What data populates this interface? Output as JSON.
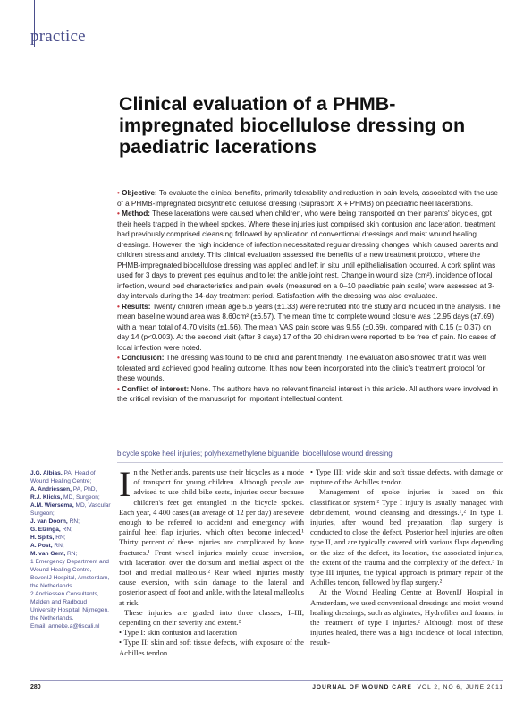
{
  "header": {
    "section": "practice"
  },
  "title": "Clinical evaluation of a PHMB-impregnated biocellulose dressing on paediatric lacerations",
  "abstract": {
    "objective": {
      "label": "Objective:",
      "text": " To evaluate the clinical benefits, primarily tolerability and reduction in pain levels, associated with the use of a PHMB-impregnated biosynthetic cellulose dressing (Suprasorb X + PHMB) on paediatric heel lacerations."
    },
    "method": {
      "label": "Method:",
      "text": " These lacerations were caused when children, who were being transported on their parents' bicycles, got their heels trapped in the wheel spokes. Where these injuries just comprised skin contusion and laceration, treatment had previously comprised cleansing followed by application of conventional dressings and moist wound healing dressings. However, the high incidence of infection necessitated regular dressing changes, which caused parents and children stress and anxiety. This clinical evaluation assessed the benefits of a new treatment protocol, where the PHMB-impregnated biocellulose dressing was applied and left in situ until epithelialisation occurred. A cork splint was used for 3 days to prevent pes equinus and to let the ankle joint rest. Change in wound size (cm²), incidence of local infection, wound bed characteristics and pain levels (measured on a 0–10 paediatric pain scale) were assessed at 3-day intervals during the 14-day treatment period. Satisfaction with the dressing was also evaluated."
    },
    "results": {
      "label": "Results:",
      "text": " Twenty children (mean age 5.6 years (±1.33) were recruited into the study and included in the analysis. The mean baseline wound area was 8.60cm² (±6.57). The mean time to complete wound closure was 12.95 days (±7.69) with a mean total of 4.70 visits (±1.56). The mean VAS pain score was 9.55 (±0.69), compared with 0.15 (± 0.37) on day 14 (p<0.003). At the second visit (after 3 days) 17 of the 20 children were reported to be free of pain. No cases of local infection were noted."
    },
    "conclusion": {
      "label": "Conclusion:",
      "text": " The dressing was found to be child and parent friendly. The evaluation also showed that it was well tolerated and achieved good healing outcome. It has now been incorporated into the clinic's treatment protocol for these wounds."
    },
    "conflict": {
      "label": "Conflict of interest:",
      "text": " None. The authors have no relevant financial interest in this article. All authors were involved in the critical revision of the manuscript for important intellectual content."
    }
  },
  "keywords": "bicycle spoke heel injuries; polyhexamethylene biguanide; biocellulose wound dressing",
  "authors": {
    "people": [
      {
        "name": "J.G. Albias,",
        "role": " PA, Head of Wound Healing Centre;"
      },
      {
        "name": "A. Andriessen,",
        "role": " PA, PhD,"
      },
      {
        "name": "R.J. Klicks,",
        "role": " MD, Surgeon;"
      },
      {
        "name": "A.M. Wiersema,",
        "role": " MD, Vascular Surgeon;"
      },
      {
        "name": "J. van Doorn,",
        "role": " RN;"
      },
      {
        "name": "G. Elzinga,",
        "role": " RN;"
      },
      {
        "name": "H. Spits,",
        "role": " RN;"
      },
      {
        "name": "A. Post,",
        "role": " RN;"
      },
      {
        "name": "M. van Gent,",
        "role": " RN;"
      }
    ],
    "affiliation_1": "1 Emergency Department and Wound Healing Centre, BovenIJ Hospital, Amsterdam, the Netherlands",
    "affiliation_2": "2 Andriessen Consultants, Malden and Radboud University Hospital, Nijmegen, the Netherlands.",
    "email": "Email: anneke.a@tiscali.nl"
  },
  "body": {
    "dropcap": "I",
    "col1_p1": "n the Netherlands, parents use their bicycles as a mode of transport for young children. Although people are advised to use child bike seats, injuries occur because children's feet get entangled in the bicycle spokes. Each year, 4 400 cases (an average of 12 per day) are severe enough to be referred to accident and emergency with painful heel flap injuries, which often become infected.¹ Thirty percent of these injuries are complicated by bone fractures.¹ Front wheel injuries mainly cause inversion, with laceration over the dorsum and medial aspect of the foot and medial malleolus.² Rear wheel injuries mostly cause eversion, with skin damage to the lateral and posterior aspect of foot and ankle, with the lateral malleolus at risk.",
    "col1_p2": "These injuries are graded into three classes, I–III, depending on their severity and extent.²",
    "col1_b1": "• Type I: skin contusion and laceration",
    "col1_b2": "• Type II: skin and soft tissue defects, with exposure of the Achilles tendon",
    "col2_b3": "• Type III: wide skin and soft tissue defects, with damage or rupture of the Achilles tendon.",
    "col2_p1": "Management of spoke injuries is based on this classification system.² Type I injury is usually managed with debridement, wound cleansing and dressings.¹,² In type II injuries, after wound bed preparation, flap surgery is conducted to close the defect. Posterior heel injuries are often type II, and are typically covered with various flaps depending on the size of the defect, its location, the associated injuries, the extent of the trauma and the complexity of the defect.³ In type III injuries, the typical approach is primary repair of the Achilles tendon, followed by flap surgery.²",
    "col2_p2": "At the Wound Healing Centre at BovenIJ Hospital in Amsterdam, we used conventional dressings and moist wound healing dressings, such as alginates, Hydrofiber and foams, in the treatment of type I injuries.² Although most of these injuries healed, there was a high incidence of local infection, result-"
  },
  "footer": {
    "page": "280",
    "journal": "JOURNAL OF WOUND CARE",
    "issue": "VOL 2, NO 6, JUNE 2011"
  },
  "colors": {
    "accent": "#4a4e8c",
    "bullet": "#c8353d"
  }
}
